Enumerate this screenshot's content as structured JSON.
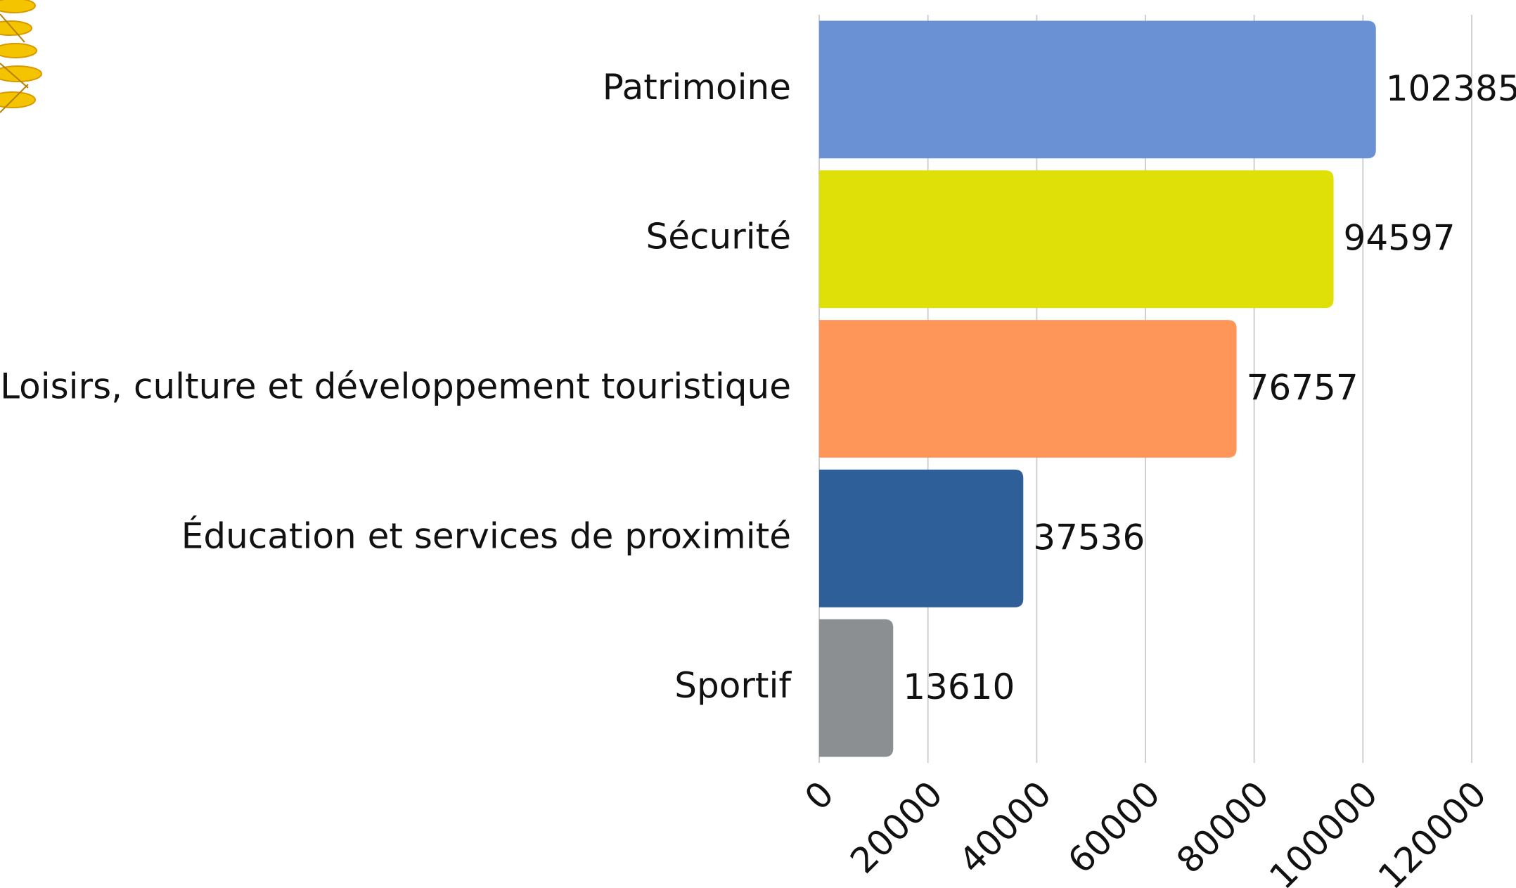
{
  "chart_data": {
    "type": "bar",
    "orientation": "horizontal",
    "categories": [
      "Patrimoine",
      "Sécurité",
      "Loisirs, culture et développement touristique",
      "Éducation et services de proximité",
      "Sportif"
    ],
    "values": [
      102385,
      94597,
      76757,
      37536,
      13610
    ],
    "colors": [
      "#6a91d4",
      "#dfe007",
      "#ff9659",
      "#2f5f98",
      "#8c8f92"
    ],
    "xlim": [
      0,
      120000
    ],
    "xticks": [
      0,
      20000,
      40000,
      60000,
      80000,
      100000,
      120000
    ],
    "grid": true
  }
}
